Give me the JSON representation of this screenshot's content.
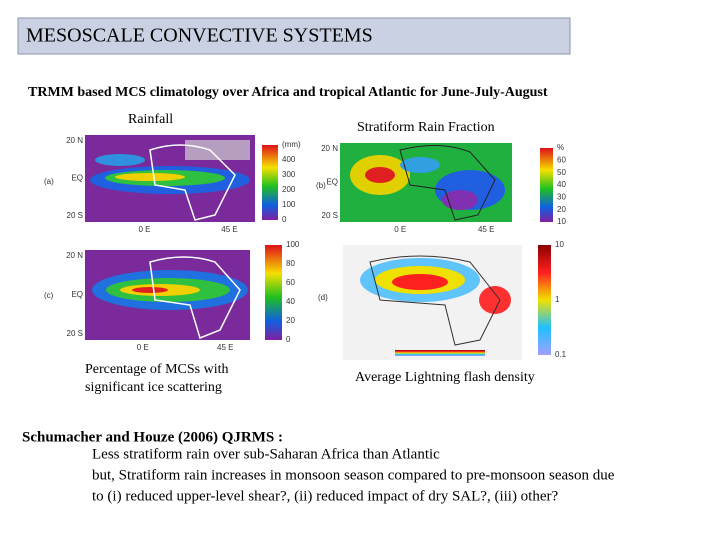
{
  "header": {
    "title": "MESOSCALE CONVECTIVE SYSTEMS"
  },
  "subtitle": "TRMM based MCS climatology over Africa and tropical Atlantic for June-July-August",
  "panels": [
    {
      "label": "(a)",
      "title": "Rainfall",
      "lat": [
        "20 N",
        "EQ",
        "20 S"
      ],
      "lon": [
        "0 E",
        "45 E"
      ],
      "colorbar": [
        "(mm)",
        "400",
        "300",
        "200",
        "100",
        "0"
      ]
    },
    {
      "label": "(b)",
      "title": "Stratiform Rain Fraction",
      "lat": [
        "20 N",
        "EQ",
        "20 S"
      ],
      "lon": [
        "0 E",
        "45 E"
      ],
      "colorbar": [
        "%",
        "60",
        "50",
        "40",
        "30",
        "20",
        "10"
      ]
    },
    {
      "label": "(c)",
      "caption": [
        "Percentage of MCSs with",
        "significant ice scattering"
      ],
      "lat": [
        "20 N",
        "EQ",
        "20 S"
      ],
      "lon": [
        "0 E",
        "45 E"
      ],
      "colorbar": [
        "100",
        "80",
        "60",
        "40",
        "20",
        "0"
      ]
    },
    {
      "label": "(d)",
      "caption": [
        "Average Lightning flash density"
      ],
      "lat": [],
      "lon": [],
      "colorbar": [
        "10",
        "1",
        "0.1"
      ]
    }
  ],
  "citation": "Schumacher and Houze (2006) QJRMS :",
  "bullets": [
    "Less stratiform rain over sub-Saharan Africa than Atlantic",
    "but, Stratiform rain increases in monsoon season compared to pre-monsoon season due",
    "to (i) reduced upper-level shear?, (ii) reduced impact of dry SAL?, (iii) other?"
  ]
}
